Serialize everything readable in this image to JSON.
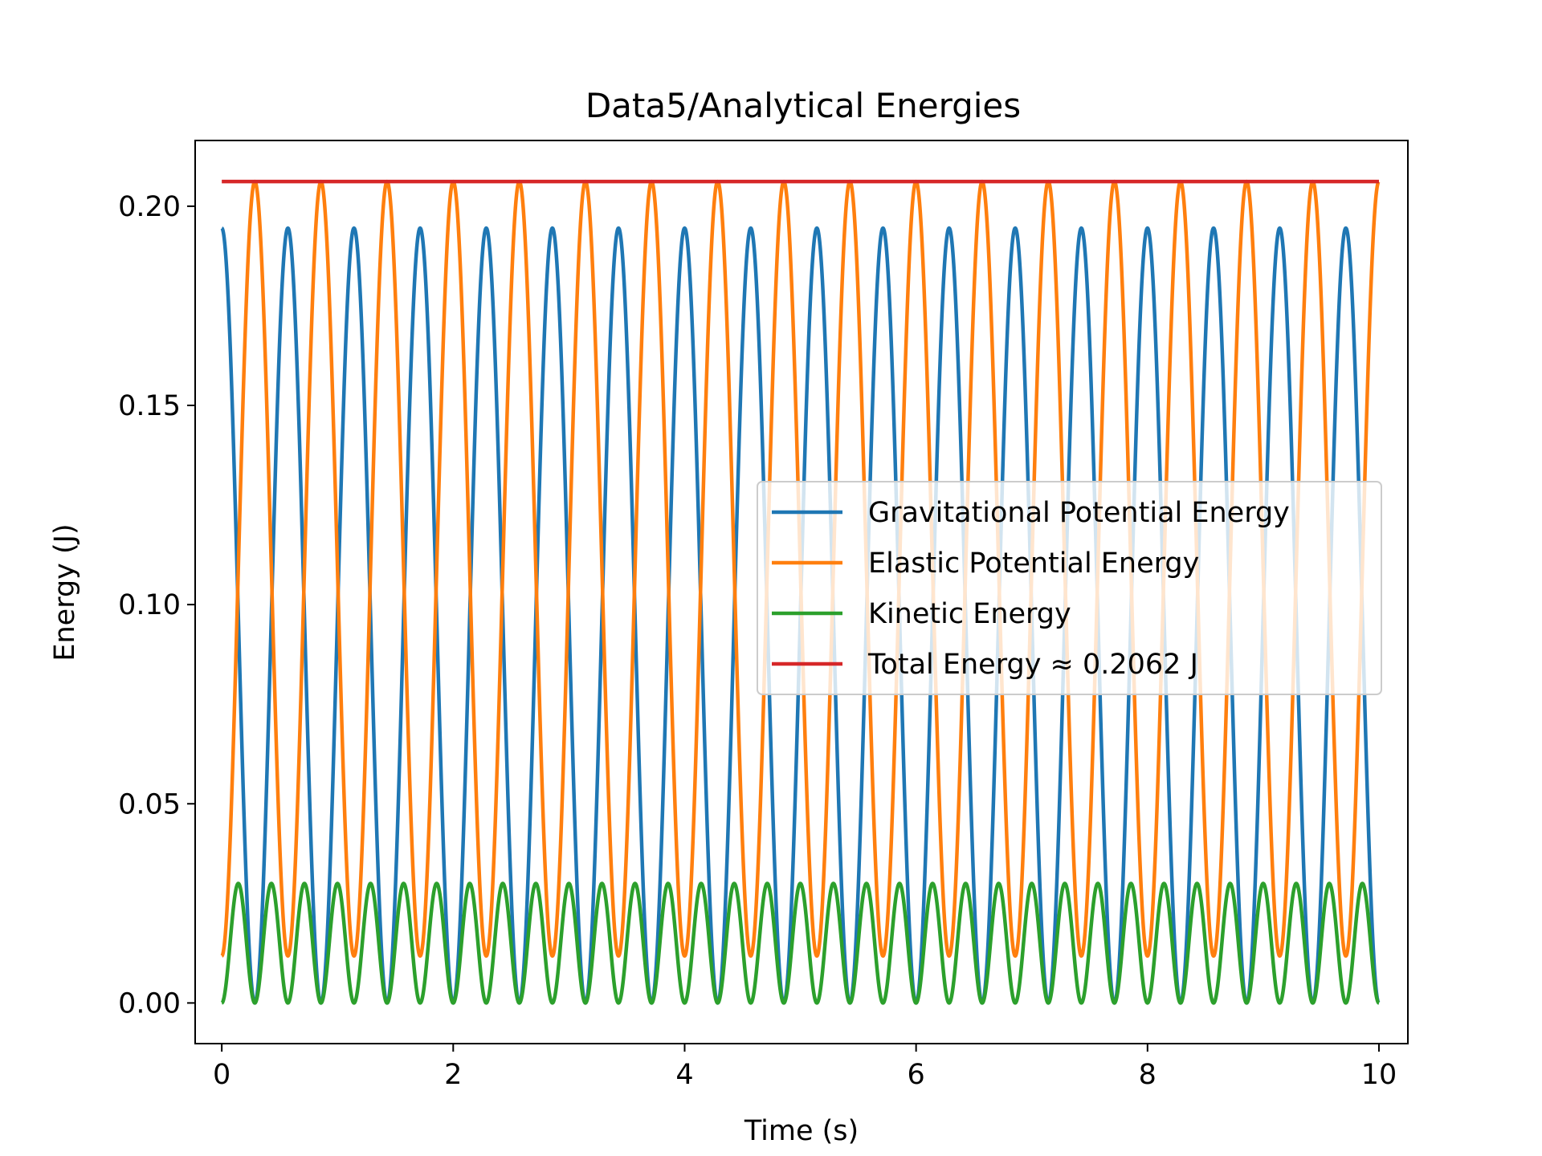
{
  "chart_data": {
    "type": "line",
    "title": "Data5/Analytical Energies",
    "xlabel": "Time (s)",
    "ylabel": "Energy (J)",
    "xlim": [
      -0.23,
      10.25
    ],
    "ylim": [
      -0.0102,
      0.2165
    ],
    "xticks": [
      0,
      2,
      4,
      6,
      8,
      10
    ],
    "xtick_labels": [
      "0",
      "2",
      "4",
      "6",
      "8",
      "10"
    ],
    "yticks": [
      0.0,
      0.05,
      0.1,
      0.15,
      0.2
    ],
    "ytick_labels": [
      "0.00",
      "0.05",
      "0.10",
      "0.15",
      "0.20"
    ],
    "grid": false,
    "legend_position": "center-right",
    "x_range": [
      0,
      10
    ],
    "oscillation_period_s": 0.5714,
    "series": [
      {
        "name": "Gravitational Potential Energy",
        "color": "#1f77b4",
        "form": "oscillating",
        "min": 0.0,
        "max": 0.1945,
        "value_at_t0": 0.1945,
        "phase": "maximum at t = 0"
      },
      {
        "name": "Elastic Potential Energy",
        "color": "#ff7f0e",
        "form": "oscillating",
        "min": 0.0118,
        "max": 0.2062,
        "value_at_t0": 0.0118,
        "phase": "minimum at t = 0"
      },
      {
        "name": "Kinetic Energy",
        "color": "#2ca02c",
        "form": "oscillating",
        "min": 0.0,
        "max": 0.03,
        "value_at_t0": 0.0,
        "phase": "zero at t = 0, double frequency"
      },
      {
        "name": "Total Energy ≈ 0.2062 J",
        "color": "#d62728",
        "form": "constant",
        "value": 0.2062
      }
    ]
  }
}
